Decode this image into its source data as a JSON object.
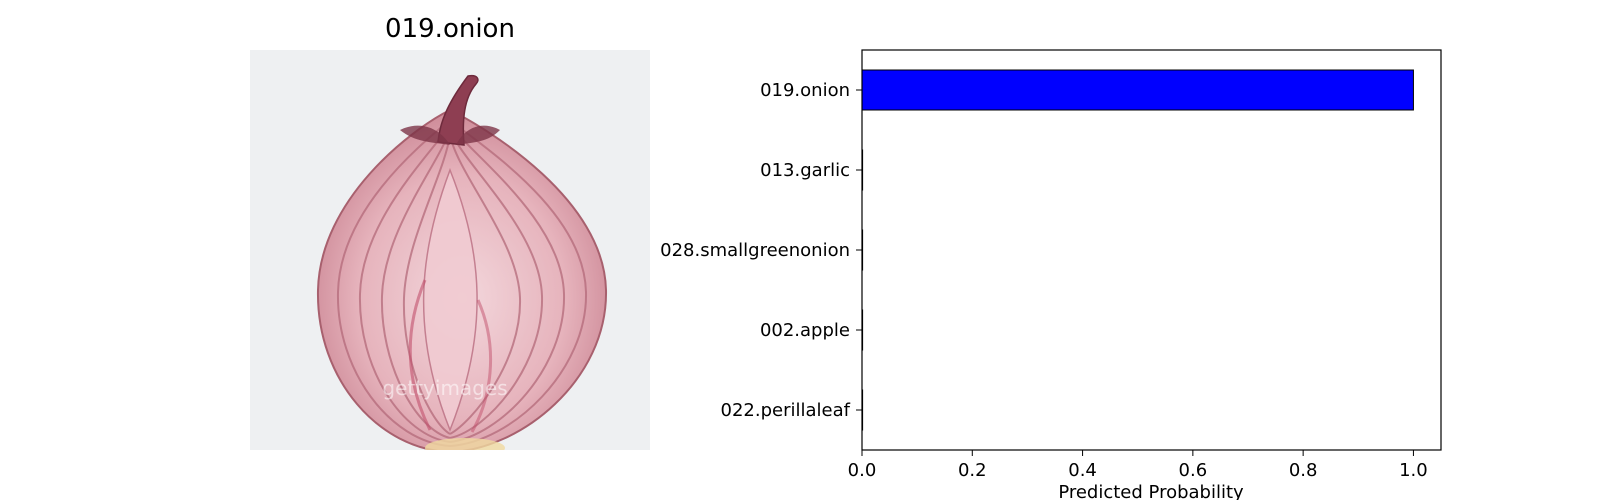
{
  "image_panel": {
    "title": "019.onion",
    "watermark": "gettyimages"
  },
  "chart_data": {
    "type": "bar",
    "orientation": "horizontal",
    "categories": [
      "019.onion",
      "013.garlic",
      "028.smallgreenonion",
      "002.apple",
      "022.perillaleaf"
    ],
    "values": [
      1.0,
      0.0005,
      0.0002,
      0.0002,
      0.0001
    ],
    "xlabel": "Predicted Probability",
    "ylabel": "",
    "xlim": [
      0.0,
      1.05
    ],
    "xticks": [
      "0.0",
      "0.2",
      "0.4",
      "0.6",
      "0.8",
      "1.0"
    ],
    "bar_color": "#0000ff",
    "grid": false
  }
}
